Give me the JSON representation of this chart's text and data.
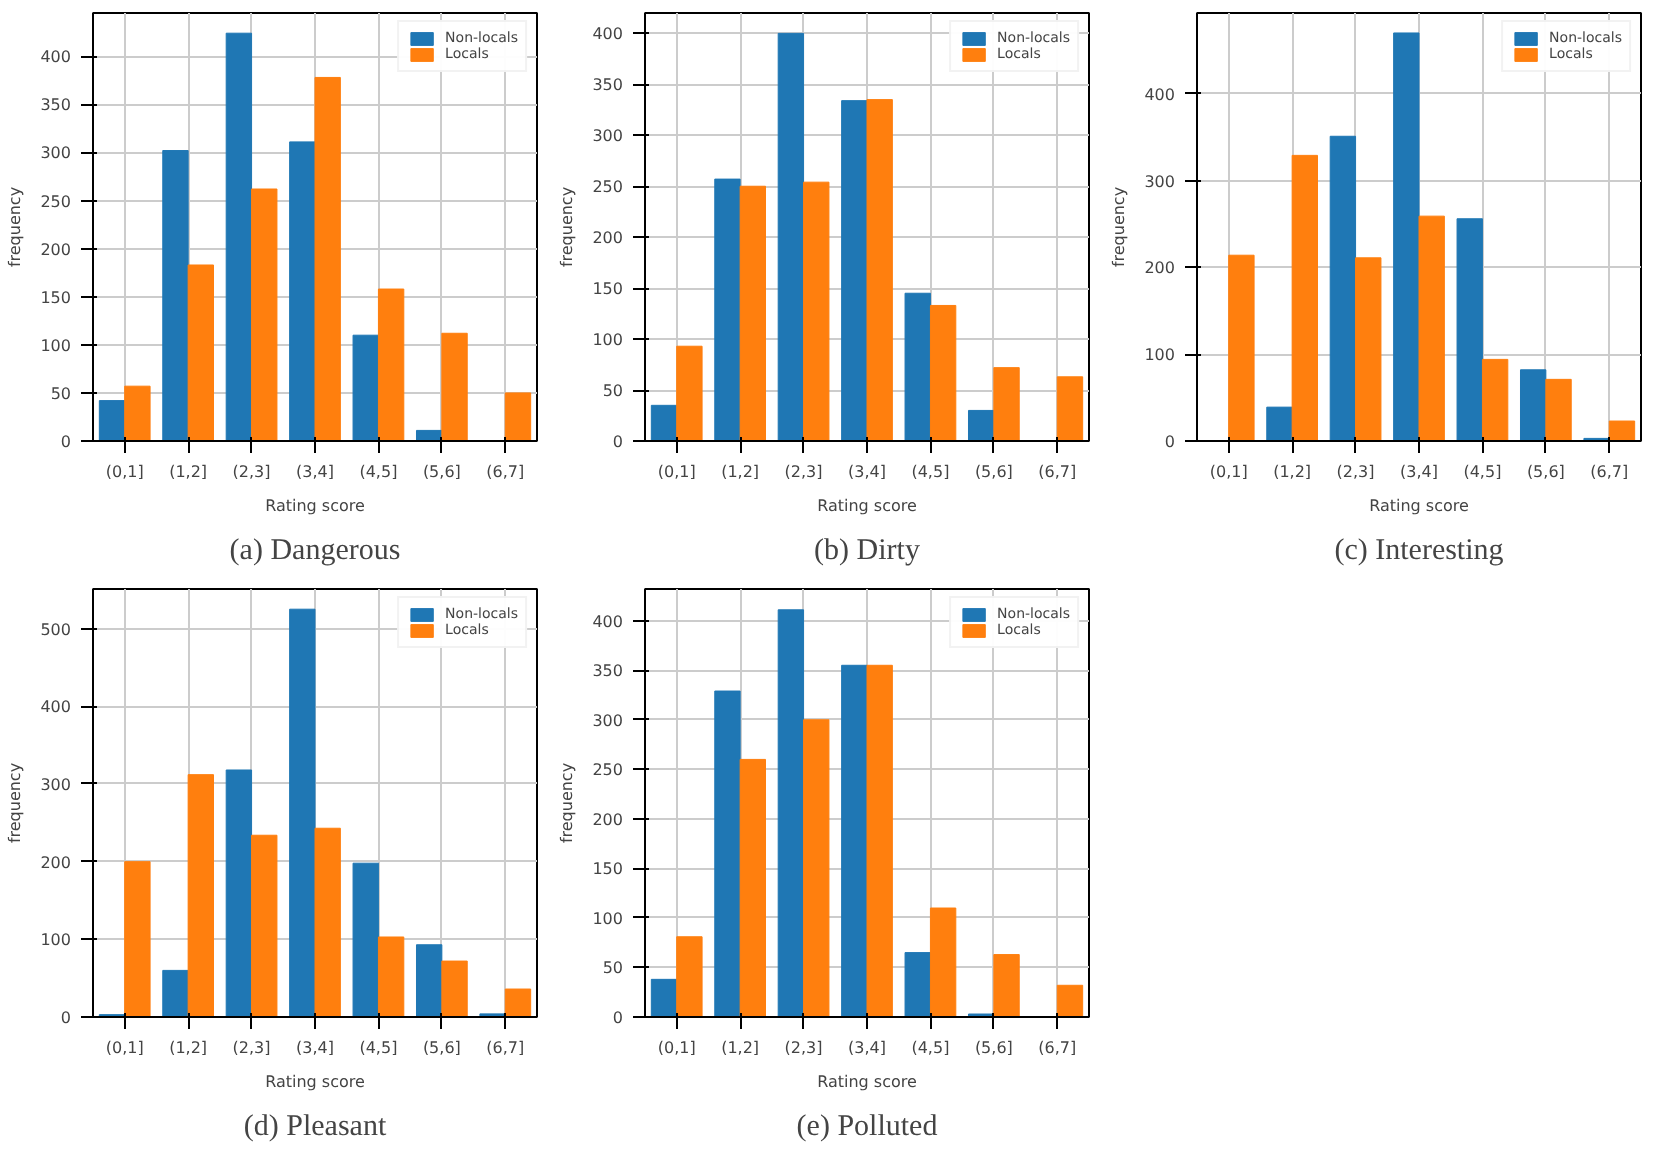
{
  "chart_data": [
    {
      "type": "bar",
      "title": "(a) Dangerous",
      "xlabel": "Rating score",
      "ylabel": "frequency",
      "categories": [
        "(0,1]",
        "(1,2]",
        "(2,3]",
        "(3,4]",
        "(4,5]",
        "(5,6]",
        "(6,7]"
      ],
      "series": [
        {
          "name": "Non-locals",
          "color": "#1f77b4",
          "values": [
            42,
            302,
            424,
            311,
            110,
            11,
            0
          ]
        },
        {
          "name": "Locals",
          "color": "#ff7f0e",
          "values": [
            57,
            183,
            262,
            378,
            158,
            112,
            50
          ]
        }
      ],
      "ylim": [
        0,
        445
      ],
      "yticks": [
        0,
        50,
        100,
        150,
        200,
        250,
        300,
        350,
        400
      ],
      "grid": true,
      "legend": "top right"
    },
    {
      "type": "bar",
      "title": "(b) Dirty",
      "xlabel": "Rating score",
      "ylabel": "frequency",
      "categories": [
        "(0,1]",
        "(1,2]",
        "(2,3]",
        "(3,4]",
        "(4,5]",
        "(5,6]",
        "(6,7]"
      ],
      "series": [
        {
          "name": "Non-locals",
          "color": "#1f77b4",
          "values": [
            35,
            257,
            400,
            334,
            145,
            30,
            0
          ]
        },
        {
          "name": "Locals",
          "color": "#ff7f0e",
          "values": [
            93,
            250,
            254,
            335,
            133,
            72,
            63
          ]
        }
      ],
      "ylim": [
        0,
        420
      ],
      "yticks": [
        0,
        50,
        100,
        150,
        200,
        250,
        300,
        350,
        400
      ],
      "grid": true,
      "legend": "top right"
    },
    {
      "type": "bar",
      "title": "(c) Interesting",
      "xlabel": "Rating score",
      "ylabel": "frequency",
      "categories": [
        "(0,1]",
        "(1,2]",
        "(2,3]",
        "(3,4]",
        "(4,5]",
        "(5,6]",
        "(6,7]"
      ],
      "series": [
        {
          "name": "Non-locals",
          "color": "#1f77b4",
          "values": [
            null,
            39,
            351,
            470,
            256,
            82,
            3
          ]
        },
        {
          "name": "Locals",
          "color": "#ff7f0e",
          "values": [
            214,
            329,
            211,
            259,
            94,
            71,
            23
          ]
        }
      ],
      "ylim": [
        0,
        493
      ],
      "yticks": [
        0,
        100,
        200,
        300,
        400
      ],
      "grid": true,
      "legend": "top right"
    },
    {
      "type": "bar",
      "title": "(d) Pleasant",
      "xlabel": "Rating score",
      "ylabel": "frequency",
      "categories": [
        "(0,1]",
        "(1,2]",
        "(2,3]",
        "(3,4]",
        "(4,5]",
        "(5,6]",
        "(6,7]"
      ],
      "series": [
        {
          "name": "Non-locals",
          "color": "#1f77b4",
          "values": [
            3,
            60,
            318,
            525,
            198,
            93,
            4
          ]
        },
        {
          "name": "Locals",
          "color": "#ff7f0e",
          "values": [
            200,
            312,
            234,
            243,
            103,
            72,
            36
          ]
        }
      ],
      "ylim": [
        0,
        551
      ],
      "yticks": [
        0,
        100,
        200,
        300,
        400,
        500
      ],
      "grid": true,
      "legend": "top right"
    },
    {
      "type": "bar",
      "title": "(e) Polluted",
      "xlabel": "Rating score",
      "ylabel": "frequency",
      "categories": [
        "(0,1]",
        "(1,2]",
        "(2,3]",
        "(3,4]",
        "(4,5]",
        "(5,6]",
        "(6,7]"
      ],
      "series": [
        {
          "name": "Non-locals",
          "color": "#1f77b4",
          "values": [
            38,
            329,
            411,
            355,
            65,
            3,
            0
          ]
        },
        {
          "name": "Locals",
          "color": "#ff7f0e",
          "values": [
            81,
            260,
            300,
            355,
            110,
            63,
            32
          ]
        }
      ],
      "ylim": [
        0,
        432
      ],
      "yticks": [
        0,
        50,
        100,
        150,
        200,
        250,
        300,
        350,
        400
      ],
      "grid": true,
      "legend": "top right"
    }
  ]
}
